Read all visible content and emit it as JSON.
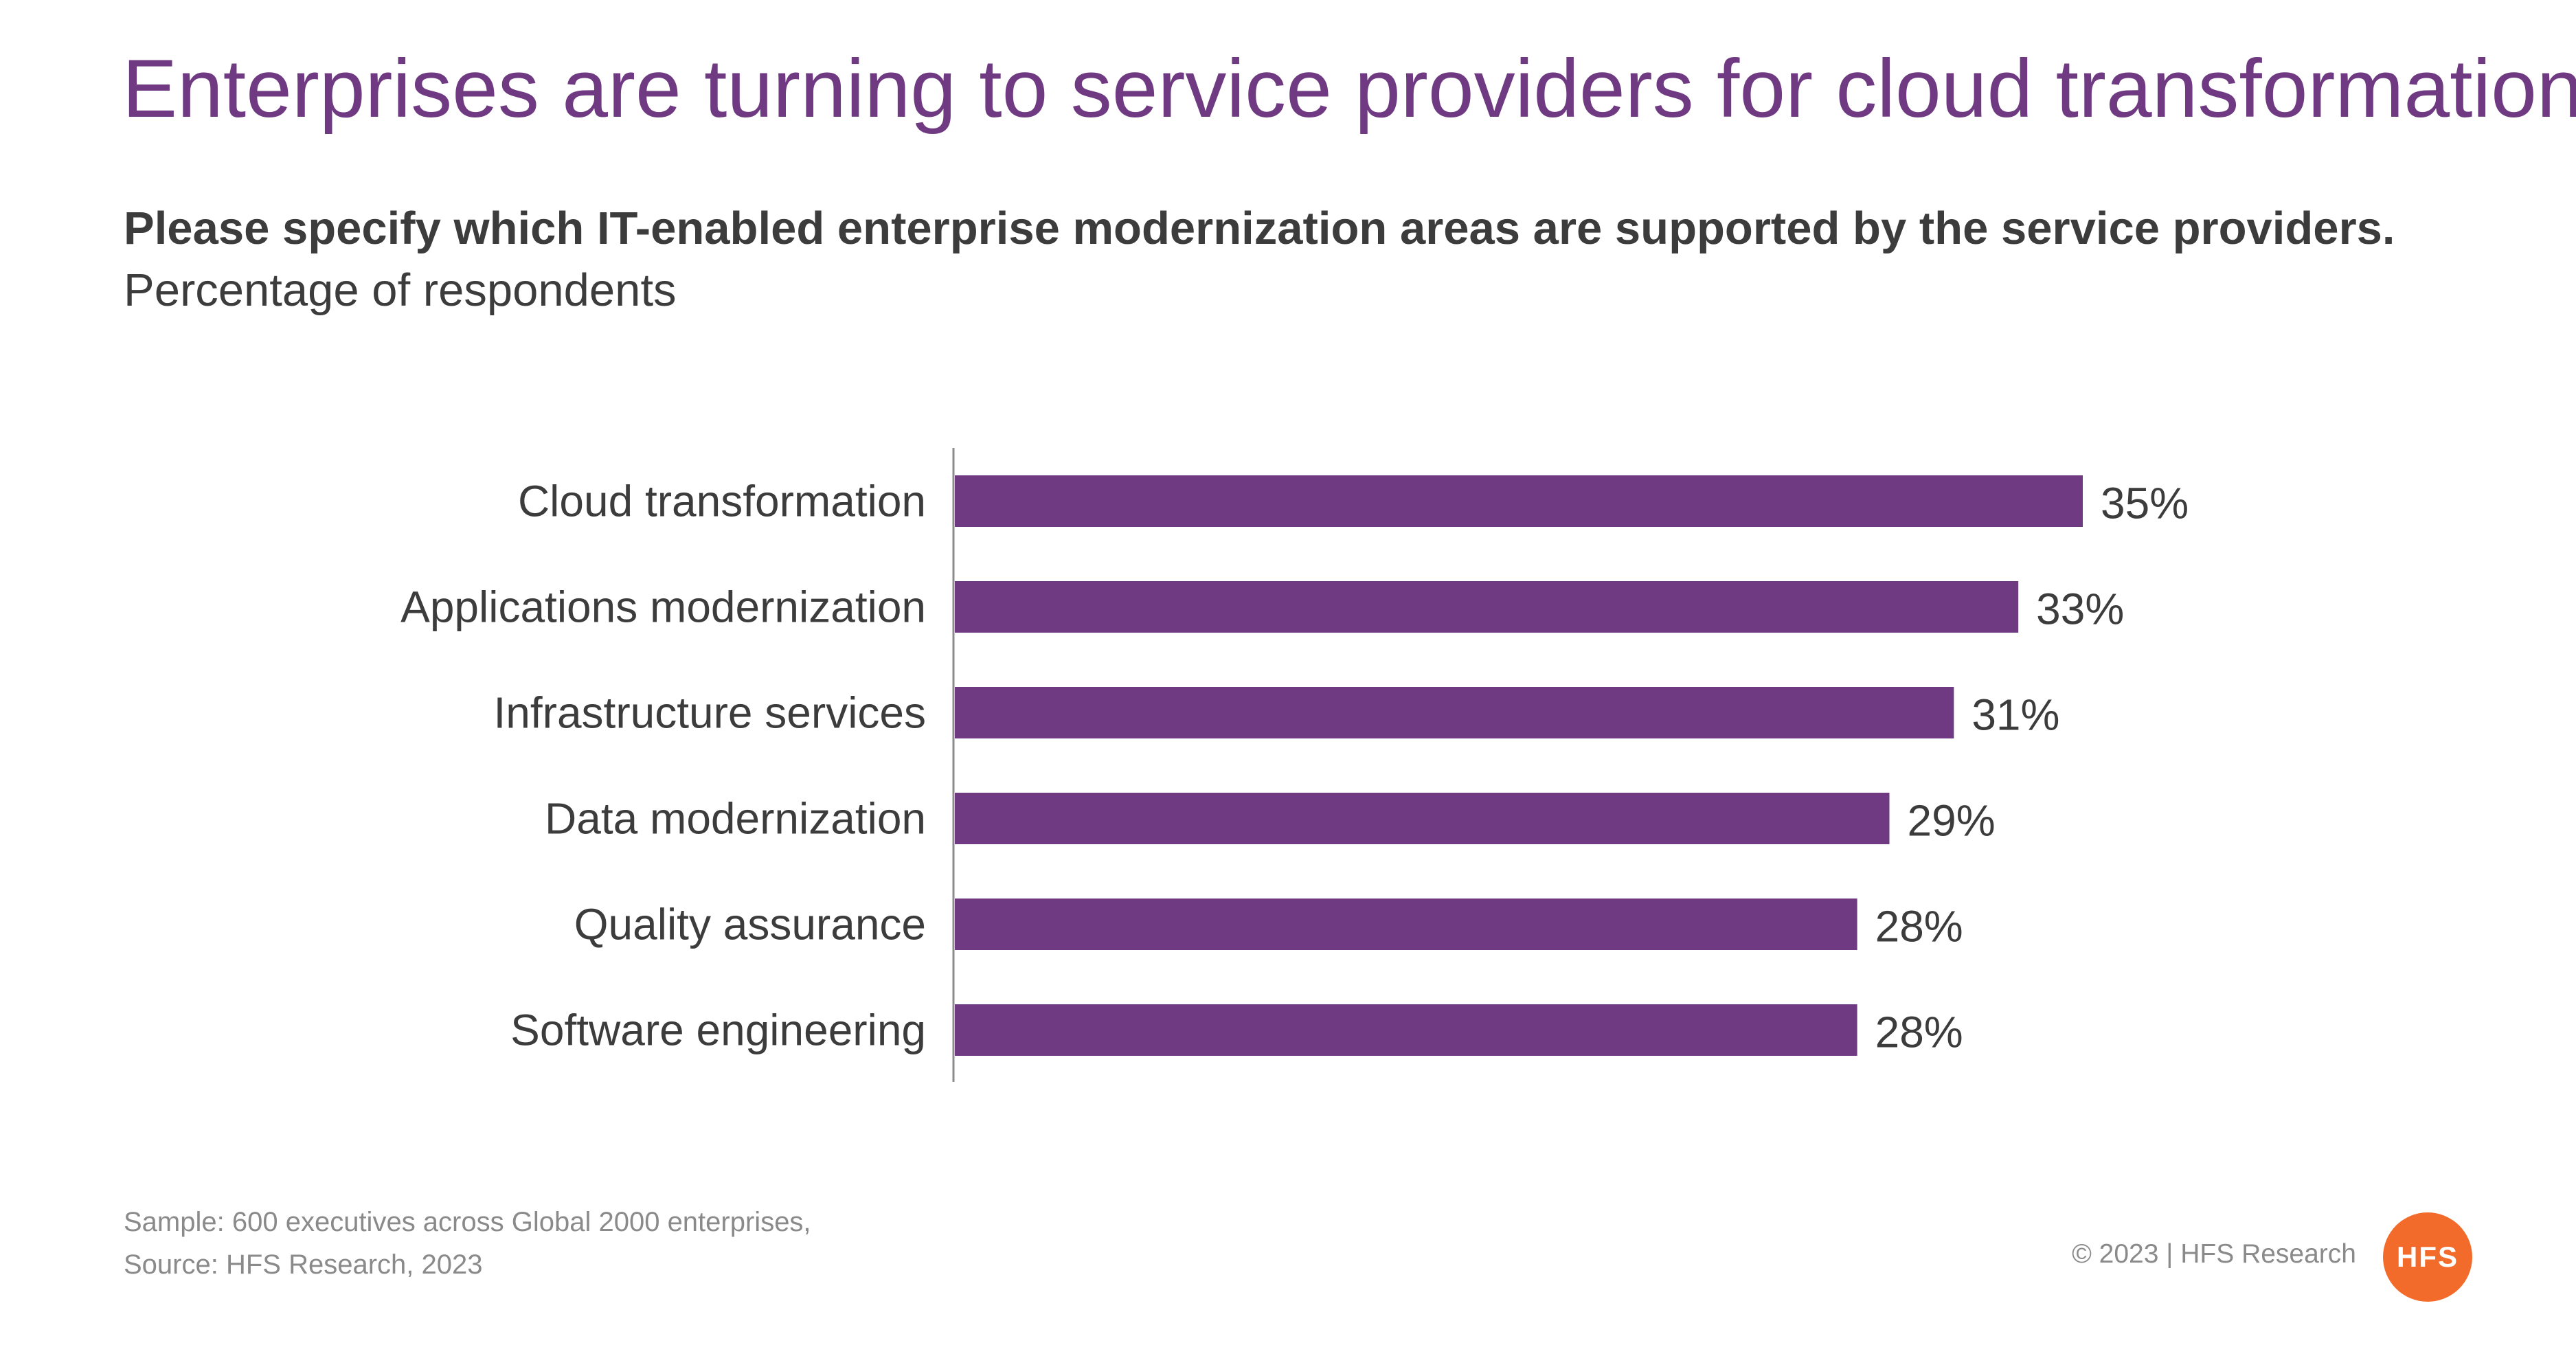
{
  "header": {
    "title": "Enterprises are turning to service providers for cloud transformation",
    "question": "Please specify which IT-enabled enterprise modernization areas are supported by the service providers.",
    "subtitle": "Percentage of respondents"
  },
  "chart_data": {
    "type": "bar",
    "orientation": "horizontal",
    "categories": [
      "Cloud transformation",
      "Applications modernization",
      "Infrastructure services",
      "Data modernization",
      "Quality assurance",
      "Software engineering"
    ],
    "values": [
      35,
      33,
      31,
      29,
      28,
      28
    ],
    "value_labels": [
      "35%",
      "33%",
      "31%",
      "29%",
      "28%",
      "28%"
    ],
    "xlim": [
      0,
      35
    ],
    "grid": false,
    "legend": "none"
  },
  "footer": {
    "note_line1": "Sample: 600 executives across Global 2000 enterprises,",
    "note_line2": "Source: HFS Research, 2023",
    "copyright": "© 2023 | HFS Research",
    "logo_text": "HFS"
  },
  "colors": {
    "bar": "#6f3a82",
    "title": "#6f3a82",
    "text": "#3c3c3c",
    "muted": "#8a8a8a",
    "logo": "#f26b2b",
    "axis": "#8c8c8c"
  }
}
